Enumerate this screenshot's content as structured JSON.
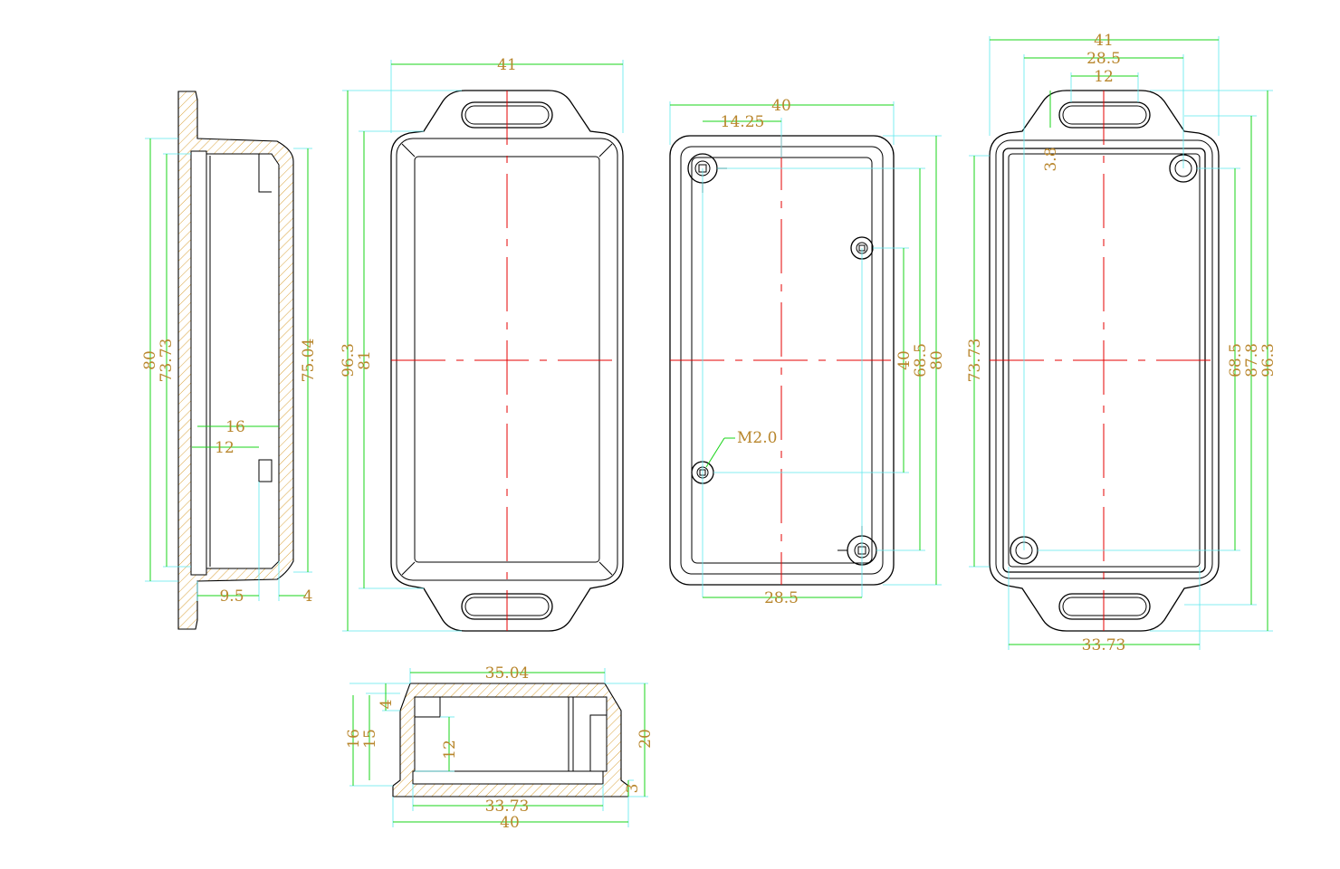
{
  "dimensions": {
    "side": {
      "d80": "80",
      "d73_73": "73.73",
      "d75_04": "75.04",
      "d16": "16",
      "d12": "12",
      "d9_5": "9.5",
      "d4": "4"
    },
    "front": {
      "d41": "41",
      "d96_3": "96.3",
      "d81": "81"
    },
    "interior": {
      "d40": "40",
      "d14_25": "14.25",
      "d40v": "40",
      "d68_5": "68.5",
      "d80": "80",
      "d28_5": "28.5",
      "m2": "M2.0"
    },
    "back": {
      "d41": "41",
      "d28_5": "28.5",
      "d12": "12",
      "d3_8": "3.8",
      "d73_73": "73.73",
      "d68_5": "68.5",
      "d87_8": "87.8",
      "d96_3": "96.3",
      "d33_73": "33.73"
    },
    "section": {
      "d35_04": "35.04",
      "d33_73": "33.73",
      "d40": "40",
      "d16": "16",
      "d15": "15",
      "d4": "4",
      "d12": "12",
      "d20": "20",
      "d3": "3"
    }
  },
  "colors": {
    "outline": "#000000",
    "centerline": "#e60000",
    "extension": "#5ee8ee",
    "dimension": "#18d418",
    "text": "#b8862c"
  }
}
